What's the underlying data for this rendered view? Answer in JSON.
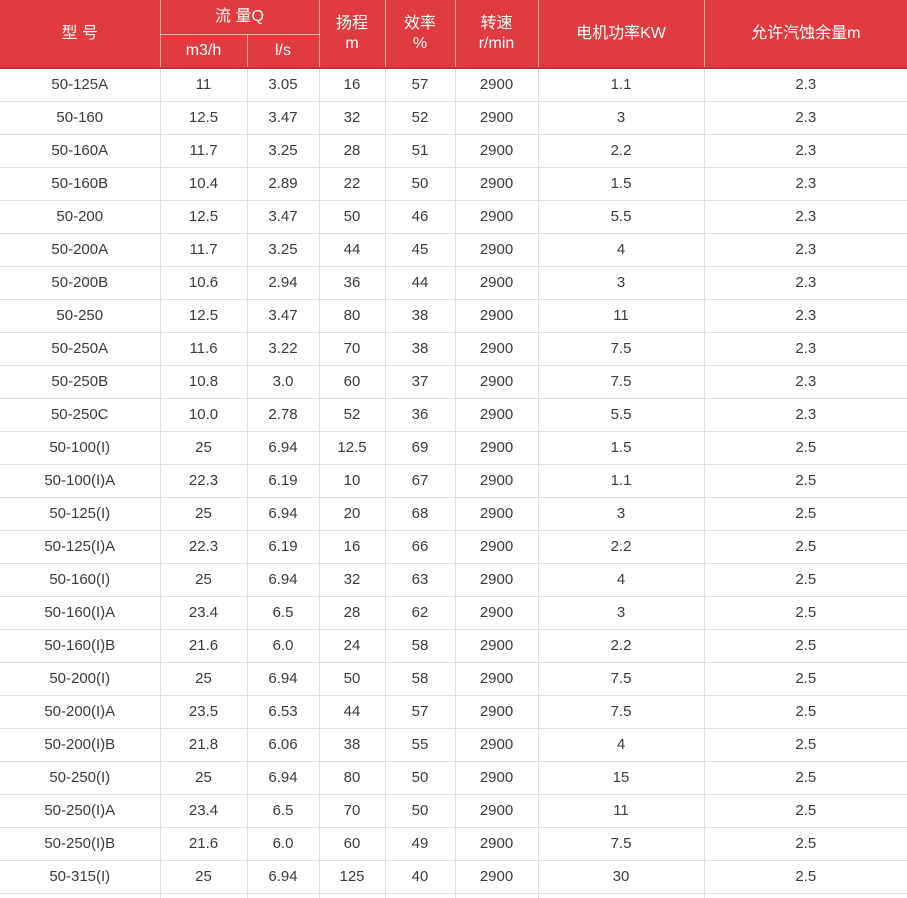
{
  "table": {
    "header": {
      "model": "型 号",
      "flow_group": "流 量Q",
      "flow_units": {
        "m3h": "m3/h",
        "ls": "l/s"
      },
      "head": {
        "line1": "扬程",
        "line2": "m"
      },
      "eff": {
        "line1": "效率",
        "line2": "%"
      },
      "speed": {
        "line1": "转速",
        "line2": "r/min"
      },
      "power": "电机功率KW",
      "npsh": "允许汽蚀余量m"
    },
    "rows": [
      [
        "50-125A",
        "11",
        "3.05",
        "16",
        "57",
        "2900",
        "1.1",
        "2.3"
      ],
      [
        "50-160",
        "12.5",
        "3.47",
        "32",
        "52",
        "2900",
        "3",
        "2.3"
      ],
      [
        "50-160A",
        "11.7",
        "3.25",
        "28",
        "51",
        "2900",
        "2.2",
        "2.3"
      ],
      [
        "50-160B",
        "10.4",
        "2.89",
        "22",
        "50",
        "2900",
        "1.5",
        "2.3"
      ],
      [
        "50-200",
        "12.5",
        "3.47",
        "50",
        "46",
        "2900",
        "5.5",
        "2.3"
      ],
      [
        "50-200A",
        "11.7",
        "3.25",
        "44",
        "45",
        "2900",
        "4",
        "2.3"
      ],
      [
        "50-200B",
        "10.6",
        "2.94",
        "36",
        "44",
        "2900",
        "3",
        "2.3"
      ],
      [
        "50-250",
        "12.5",
        "3.47",
        "80",
        "38",
        "2900",
        "11",
        "2.3"
      ],
      [
        "50-250A",
        "11.6",
        "3.22",
        "70",
        "38",
        "2900",
        "7.5",
        "2.3"
      ],
      [
        "50-250B",
        "10.8",
        "3.0",
        "60",
        "37",
        "2900",
        "7.5",
        "2.3"
      ],
      [
        "50-250C",
        "10.0",
        "2.78",
        "52",
        "36",
        "2900",
        "5.5",
        "2.3"
      ],
      [
        "50-100(I)",
        "25",
        "6.94",
        "12.5",
        "69",
        "2900",
        "1.5",
        "2.5"
      ],
      [
        "50-100(I)A",
        "22.3",
        "6.19",
        "10",
        "67",
        "2900",
        "1.1",
        "2.5"
      ],
      [
        "50-125(I)",
        "25",
        "6.94",
        "20",
        "68",
        "2900",
        "3",
        "2.5"
      ],
      [
        "50-125(I)A",
        "22.3",
        "6.19",
        "16",
        "66",
        "2900",
        "2.2",
        "2.5"
      ],
      [
        "50-160(I)",
        "25",
        "6.94",
        "32",
        "63",
        "2900",
        "4",
        "2.5"
      ],
      [
        "50-160(I)A",
        "23.4",
        "6.5",
        "28",
        "62",
        "2900",
        "3",
        "2.5"
      ],
      [
        "50-160(I)B",
        "21.6",
        "6.0",
        "24",
        "58",
        "2900",
        "2.2",
        "2.5"
      ],
      [
        "50-200(I)",
        "25",
        "6.94",
        "50",
        "58",
        "2900",
        "7.5",
        "2.5"
      ],
      [
        "50-200(I)A",
        "23.5",
        "6.53",
        "44",
        "57",
        "2900",
        "7.5",
        "2.5"
      ],
      [
        "50-200(I)B",
        "21.8",
        "6.06",
        "38",
        "55",
        "2900",
        "4",
        "2.5"
      ],
      [
        "50-250(I)",
        "25",
        "6.94",
        "80",
        "50",
        "2900",
        "15",
        "2.5"
      ],
      [
        "50-250(I)A",
        "23.4",
        "6.5",
        "70",
        "50",
        "2900",
        "11",
        "2.5"
      ],
      [
        "50-250(I)B",
        "21.6",
        "6.0",
        "60",
        "49",
        "2900",
        "7.5",
        "2.5"
      ],
      [
        "50-315(I)",
        "25",
        "6.94",
        "125",
        "40",
        "2900",
        "30",
        "2.5"
      ]
    ]
  },
  "colors": {
    "header_bg": "#e03b3e",
    "header_text": "#ffffff",
    "header_border_bottom": "#c23033",
    "grid": "#e0e0e0",
    "body_text": "#3b3b3b"
  }
}
